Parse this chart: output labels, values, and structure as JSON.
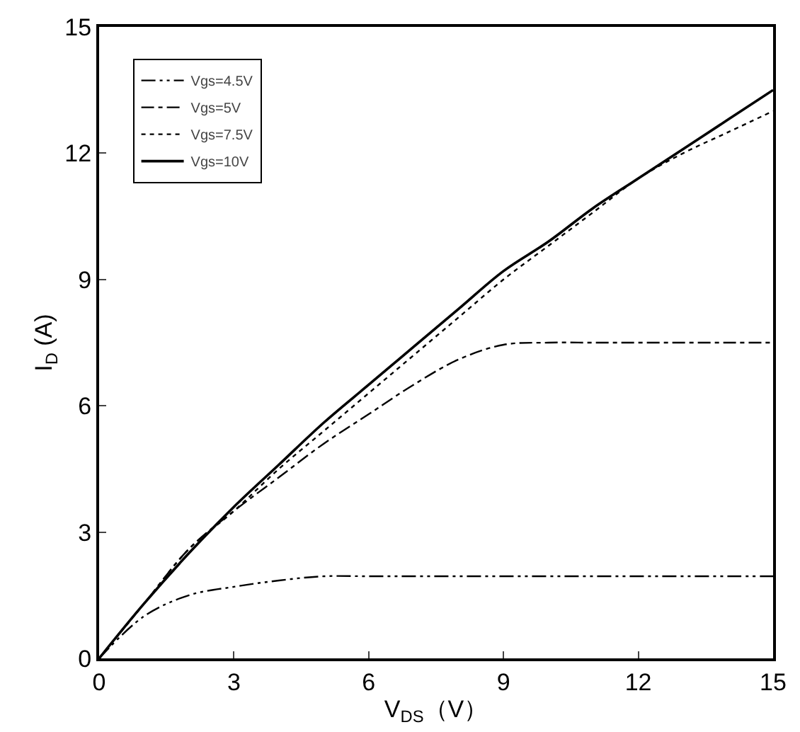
{
  "chart_data": {
    "type": "line",
    "xlabel": "V$_{DS}$（V）",
    "ylabel": "I$_{D}$ (A)",
    "xlim": [
      0,
      15
    ],
    "xticks": [
      0,
      3,
      6,
      9,
      12,
      15
    ],
    "ylim": [
      0,
      15
    ],
    "yticks": [
      0,
      3,
      6,
      9,
      12,
      15
    ],
    "grid": false,
    "legend": "top left",
    "marker": "none",
    "x": [
      0,
      1,
      2,
      3,
      4,
      5,
      6,
      7,
      8,
      9,
      10,
      11,
      12,
      13,
      14,
      15
    ],
    "series": [
      {
        "name": "Vgs=4.5V",
        "color": "#000000",
        "line_style": "dashdotdot",
        "values": [
          0,
          1.0,
          1.5,
          1.7,
          1.85,
          1.95,
          1.95,
          1.95,
          1.95,
          1.95,
          1.95,
          1.95,
          1.95,
          1.95,
          1.95,
          1.95
        ]
      },
      {
        "name": "Vgs=5V",
        "color": "#000000",
        "line_style": "dashdot",
        "values": [
          0,
          1.3,
          2.6,
          3.5,
          4.3,
          5.1,
          5.8,
          6.5,
          7.1,
          7.45,
          7.5,
          7.5,
          7.5,
          7.5,
          7.5,
          7.5
        ]
      },
      {
        "name": "Vgs=7.5V",
        "color": "#000000",
        "line_style": "dotted",
        "values": [
          0,
          1.3,
          2.6,
          3.5,
          4.5,
          5.4,
          6.3,
          7.2,
          8.1,
          9.0,
          9.8,
          10.6,
          11.4,
          12.0,
          12.5,
          13.0
        ]
      },
      {
        "name": "Vgs=10V",
        "color": "#000000",
        "line_style": "solid",
        "values": [
          0,
          1.3,
          2.5,
          3.6,
          4.6,
          5.6,
          6.5,
          7.4,
          8.3,
          9.2,
          9.9,
          10.7,
          11.4,
          12.1,
          12.8,
          13.5
        ]
      }
    ]
  }
}
